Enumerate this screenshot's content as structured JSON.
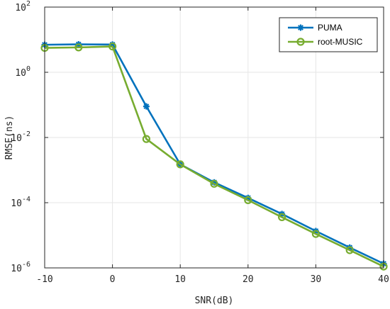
{
  "chart_data": {
    "type": "line",
    "title": "",
    "xlabel": "SNR(dB)",
    "ylabel": "RMSE(ns)",
    "x": [
      -10,
      -5,
      0,
      5,
      10,
      15,
      20,
      25,
      30,
      35,
      40
    ],
    "xlim": [
      -10,
      40
    ],
    "ylim": [
      1e-06,
      100
    ],
    "yscale": "log",
    "grid": true,
    "legend_position": "top-right",
    "x_ticks": [
      {
        "value": -10,
        "label": "-10"
      },
      {
        "value": 0,
        "label": "0"
      },
      {
        "value": 10,
        "label": "10"
      },
      {
        "value": 20,
        "label": "20"
      },
      {
        "value": 30,
        "label": "30"
      },
      {
        "value": 40,
        "label": "40"
      }
    ],
    "y_ticks": [
      {
        "value": 1e-06,
        "base": "10",
        "exp": "-6"
      },
      {
        "value": 0.0001,
        "base": "10",
        "exp": "-4"
      },
      {
        "value": 0.01,
        "base": "10",
        "exp": "-2"
      },
      {
        "value": 1,
        "base": "10",
        "exp": "0"
      },
      {
        "value": 100,
        "base": "10",
        "exp": "2"
      }
    ],
    "series": [
      {
        "name": "PUMA",
        "color": "#0072BD",
        "marker": "asterisk-filled",
        "values": [
          7.0,
          7.2,
          7.1,
          0.09,
          0.0015,
          0.00042,
          0.00014,
          4.5e-05,
          1.35e-05,
          4.2e-06,
          1.35e-06
        ]
      },
      {
        "name": "root-MUSIC",
        "color": "#77AC30",
        "marker": "circle",
        "values": [
          5.6,
          5.8,
          6.2,
          0.009,
          0.0015,
          0.00038,
          0.00012,
          3.6e-05,
          1.1e-05,
          3.5e-06,
          1.1e-06
        ]
      }
    ]
  }
}
